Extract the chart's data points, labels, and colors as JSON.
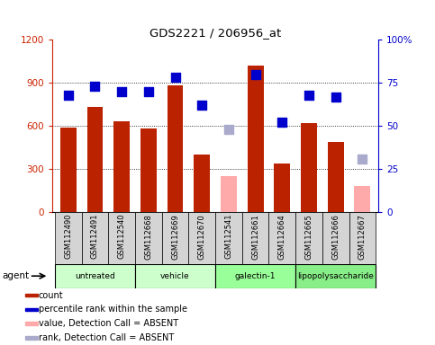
{
  "title": "GDS2221 / 206956_at",
  "samples": [
    "GSM112490",
    "GSM112491",
    "GSM112540",
    "GSM112668",
    "GSM112669",
    "GSM112670",
    "GSM112541",
    "GSM112661",
    "GSM112664",
    "GSM112665",
    "GSM112666",
    "GSM112667"
  ],
  "groups": [
    {
      "name": "untreated",
      "indices": [
        0,
        1,
        2
      ],
      "color": "#ccffcc"
    },
    {
      "name": "vehicle",
      "indices": [
        3,
        4,
        5
      ],
      "color": "#ccffcc"
    },
    {
      "name": "galectin-1",
      "indices": [
        6,
        7,
        8
      ],
      "color": "#99ff99"
    },
    {
      "name": "lipopolysaccharide",
      "indices": [
        9,
        10,
        11
      ],
      "color": "#88ee88"
    }
  ],
  "bar_values": [
    590,
    730,
    635,
    580,
    880,
    400,
    null,
    1020,
    340,
    620,
    490,
    null
  ],
  "bar_absent_values": [
    null,
    null,
    null,
    null,
    null,
    null,
    250,
    null,
    null,
    null,
    null,
    185
  ],
  "rank_values": [
    68,
    73,
    70,
    70,
    78,
    62,
    null,
    80,
    52,
    68,
    67,
    null
  ],
  "rank_absent_values": [
    null,
    null,
    null,
    null,
    null,
    null,
    48,
    null,
    null,
    null,
    null,
    31
  ],
  "bar_color": "#bb2200",
  "bar_absent_color": "#ffaaaa",
  "rank_color": "#0000cc",
  "rank_absent_color": "#aaaacc",
  "ylim_left": [
    0,
    1200
  ],
  "ylim_right": [
    0,
    100
  ],
  "yticks_left": [
    0,
    300,
    600,
    900,
    1200
  ],
  "yticks_right": [
    0,
    25,
    50,
    75,
    100
  ],
  "yticklabels_left": [
    "0",
    "300",
    "600",
    "900",
    "1200"
  ],
  "yticklabels_right": [
    "0",
    "25",
    "50",
    "75",
    "100%"
  ],
  "left_axis_color": "#cc2200",
  "right_axis_color": "#0000cc",
  "legend_items": [
    {
      "label": "count",
      "color": "#bb2200"
    },
    {
      "label": "percentile rank within the sample",
      "color": "#0000cc"
    },
    {
      "label": "value, Detection Call = ABSENT",
      "color": "#ffaaaa"
    },
    {
      "label": "rank, Detection Call = ABSENT",
      "color": "#aaaacc"
    }
  ],
  "bar_width": 0.6,
  "rank_marker_size": 55,
  "gray_box_color": "#d4d4d4",
  "group_border_color": "#000000"
}
